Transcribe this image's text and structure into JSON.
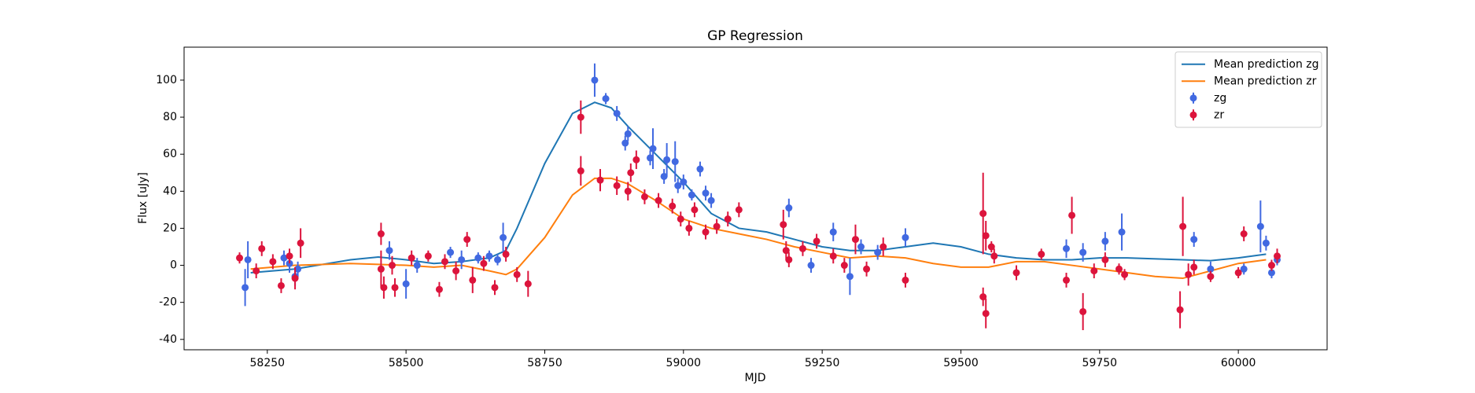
{
  "chart_data": {
    "type": "line",
    "title": "GP Regression",
    "x_label": "MJD",
    "y_label": "Flux [uJy]",
    "xlim": [
      58100,
      60160
    ],
    "ylim": [
      -45.6,
      117.8
    ],
    "xticks": [
      58250,
      58500,
      58750,
      59000,
      59250,
      59500,
      59750,
      60000
    ],
    "yticks": [
      -40,
      -20,
      0,
      20,
      40,
      60,
      80,
      100
    ],
    "legend": "upper right",
    "series": [
      {
        "name": "Mean prediction zg",
        "kind": "line",
        "color": "#1f77b4",
        "x": [
          58220,
          58300,
          58400,
          58450,
          58500,
          58550,
          58600,
          58650,
          58680,
          58700,
          58750,
          58800,
          58840,
          58870,
          58900,
          58950,
          59000,
          59050,
          59100,
          59150,
          59200,
          59250,
          59300,
          59350,
          59400,
          59450,
          59500,
          59550,
          59600,
          59650,
          59700,
          59750,
          59800,
          59900,
          59950,
          60000,
          60050
        ],
        "values": [
          -4,
          -2,
          3,
          4.5,
          3,
          1,
          2,
          4,
          8,
          20,
          55,
          82,
          88,
          85,
          75,
          60,
          45,
          28,
          20,
          18,
          14,
          10,
          8,
          8,
          10,
          12,
          10,
          6,
          4,
          3,
          3,
          4,
          4,
          3,
          2.5,
          4,
          6
        ]
      },
      {
        "name": "Mean prediction zr",
        "kind": "line",
        "color": "#ff7f0e",
        "x": [
          58220,
          58300,
          58400,
          58450,
          58500,
          58550,
          58600,
          58650,
          58680,
          58700,
          58750,
          58800,
          58840,
          58870,
          58900,
          58950,
          59000,
          59050,
          59100,
          59150,
          59200,
          59250,
          59300,
          59350,
          59400,
          59450,
          59500,
          59550,
          59600,
          59650,
          59700,
          59750,
          59800,
          59850,
          59900,
          59950,
          60000,
          60050
        ],
        "values": [
          -2,
          0,
          1,
          0.5,
          0,
          -1,
          0,
          -3,
          -5,
          -2,
          15,
          38,
          47,
          47,
          44,
          35,
          25,
          20,
          17,
          14,
          10,
          7,
          4,
          5,
          4,
          1,
          -1,
          -1,
          2,
          2,
          0,
          -2,
          -4,
          -6,
          -7,
          -3,
          1,
          3
        ]
      },
      {
        "name": "zg",
        "kind": "errorbar",
        "color": "#4169e1",
        "x": [
          58210,
          58215,
          58280,
          58290,
          58300,
          58305,
          58470,
          58500,
          58520,
          58580,
          58600,
          58630,
          58650,
          58665,
          58675,
          58840,
          58860,
          58880,
          58900,
          58895,
          58940,
          58945,
          58965,
          58970,
          58985,
          58990,
          59000,
          59015,
          59030,
          59040,
          59050,
          59190,
          59230,
          59270,
          59300,
          59320,
          59350,
          59400,
          59690,
          59720,
          59760,
          59790,
          59920,
          59950,
          60010,
          60040,
          60050,
          60060,
          60070
        ],
        "values": [
          -12,
          3,
          4,
          1,
          -6,
          -2,
          8,
          -10,
          0,
          7,
          3,
          4,
          5,
          3,
          15,
          100,
          90,
          82,
          71,
          66,
          58,
          63,
          48,
          57,
          56,
          43,
          45,
          38,
          52,
          39,
          35,
          31,
          0,
          18,
          -6,
          10,
          7,
          15,
          9,
          7,
          13,
          18,
          14,
          -2,
          -2,
          21,
          12,
          -4,
          3
        ],
        "errors": [
          10,
          10,
          4,
          5,
          5,
          4,
          5,
          8,
          4,
          3,
          5,
          3,
          3,
          3,
          8,
          9,
          3,
          4,
          4,
          4,
          4,
          11,
          4,
          9,
          11,
          4,
          4,
          3,
          4,
          4,
          4,
          5,
          4,
          5,
          10,
          4,
          4,
          5,
          5,
          5,
          5,
          10,
          4,
          4,
          3,
          14,
          4,
          3,
          3
        ]
      },
      {
        "name": "zr",
        "kind": "errorbar",
        "color": "#dc143c",
        "x": [
          58200,
          58230,
          58240,
          58260,
          58275,
          58290,
          58300,
          58310,
          58455,
          58455,
          58460,
          58475,
          58480,
          58510,
          58540,
          58560,
          58570,
          58590,
          58610,
          58620,
          58640,
          58660,
          58680,
          58700,
          58720,
          58815,
          58815,
          58850,
          58880,
          58900,
          58905,
          58915,
          58930,
          58955,
          58980,
          58995,
          59010,
          59020,
          59040,
          59060,
          59080,
          59100,
          59180,
          59185,
          59190,
          59215,
          59240,
          59270,
          59290,
          59310,
          59330,
          59360,
          59400,
          59540,
          59540,
          59545,
          59545,
          59555,
          59560,
          59600,
          59645,
          59690,
          59700,
          59720,
          59740,
          59760,
          59785,
          59795,
          59895,
          59900,
          59910,
          59920,
          59950,
          60000,
          60010,
          60060,
          60070
        ],
        "values": [
          4,
          -3,
          9,
          2,
          -11,
          5,
          -7,
          12,
          17,
          -2,
          -12,
          0,
          -12,
          4,
          5,
          -13,
          2,
          -3,
          14,
          -8,
          1,
          -12,
          6,
          -5,
          -10,
          80,
          51,
          46,
          43,
          40,
          50,
          57,
          37,
          35,
          32,
          25,
          20,
          30,
          18,
          21,
          25,
          30,
          22,
          8,
          3,
          9,
          13,
          5,
          0,
          14,
          -2,
          10,
          -8,
          28,
          -17,
          -26,
          16,
          10,
          5,
          -4,
          6,
          -8,
          27,
          -25,
          -3,
          3,
          -2,
          -5,
          -24,
          21,
          -5,
          -1,
          -6,
          -4,
          17,
          0,
          5
        ],
        "errors": [
          3,
          4,
          4,
          4,
          4,
          4,
          6,
          8,
          6,
          10,
          6,
          5,
          5,
          4,
          3,
          4,
          4,
          5,
          4,
          7,
          4,
          4,
          4,
          4,
          7,
          9,
          8,
          6,
          5,
          5,
          5,
          5,
          4,
          4,
          4,
          4,
          4,
          4,
          4,
          4,
          4,
          4,
          8,
          5,
          4,
          4,
          4,
          4,
          4,
          8,
          4,
          5,
          4,
          22,
          5,
          8,
          8,
          3,
          4,
          4,
          3,
          4,
          10,
          10,
          4,
          4,
          3,
          3,
          10,
          16,
          6,
          4,
          3,
          3,
          4,
          3,
          4
        ]
      }
    ]
  }
}
